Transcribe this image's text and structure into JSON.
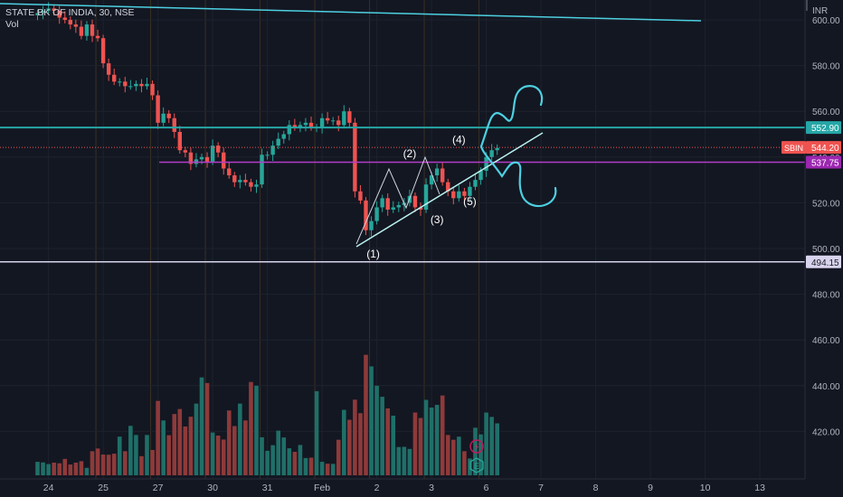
{
  "header": {
    "symbol_line": "STATE BK OF INDIA, 30, NSE",
    "volume_label": "Vol"
  },
  "currency": "INR",
  "colors": {
    "background": "#131722",
    "up": "#26a69a",
    "down": "#ef5350",
    "vol_up": "#1f6f68",
    "vol_down": "#8e3a3a",
    "teal_line": "#26a6a6",
    "magenta_line": "#b33cc8",
    "white_line": "#d9d4ee",
    "drawing": "#4dd0e1",
    "grid": "#1e222d"
  },
  "chart_data": {
    "type": "candlestick",
    "ylim": [
      403,
      617
    ],
    "y_ticks": [
      {
        "v": 420,
        "t": "420.00"
      },
      {
        "v": 440,
        "t": "440.00"
      },
      {
        "v": 460,
        "t": "460.00"
      },
      {
        "v": 480,
        "t": "480.00"
      },
      {
        "v": 500,
        "t": "500.00"
      },
      {
        "v": 520,
        "t": "520.00"
      },
      {
        "v": 540,
        "t": "540.00"
      },
      {
        "v": 560,
        "t": "560.00"
      },
      {
        "v": 580,
        "t": "580.00"
      },
      {
        "v": 600,
        "t": "600.00"
      }
    ],
    "x_ticks": [
      {
        "bar": 2,
        "t": "24"
      },
      {
        "bar": 12,
        "t": "25"
      },
      {
        "bar": 22,
        "t": "27"
      },
      {
        "bar": 32,
        "t": "30"
      },
      {
        "bar": 42,
        "t": "31"
      },
      {
        "bar": 52,
        "t": "Feb"
      },
      {
        "bar": 62,
        "t": "2"
      },
      {
        "bar": 72,
        "t": "3"
      },
      {
        "bar": 82,
        "t": "6"
      },
      {
        "bar": 92,
        "t": "7"
      },
      {
        "bar": 102,
        "t": "8"
      },
      {
        "bar": 112,
        "t": "9"
      },
      {
        "bar": 122,
        "t": "10"
      },
      {
        "bar": 132,
        "t": "13"
      }
    ],
    "close": [
      603,
      604,
      605,
      604,
      601,
      600,
      598,
      597,
      593,
      598,
      593,
      592,
      581,
      576,
      573,
      573,
      571,
      571,
      572,
      571,
      572,
      567,
      555,
      559,
      557,
      551,
      543,
      542,
      537,
      539,
      540,
      538,
      545,
      542,
      535,
      532,
      529,
      530,
      529,
      527,
      528,
      541,
      541,
      545,
      548,
      550,
      554,
      553,
      554,
      555,
      553,
      553,
      557,
      556,
      556,
      554,
      560,
      555,
      525,
      521,
      508,
      512,
      518,
      522,
      517,
      518,
      519,
      520,
      523,
      518,
      517,
      528,
      532,
      535,
      529,
      525,
      522,
      525,
      523,
      527,
      530,
      534,
      540,
      543,
      544
    ],
    "volume": [
      6.5,
      6.2,
      5.4,
      6.1,
      5.8,
      7.9,
      5.2,
      6.1,
      6.8,
      3.6,
      11.6,
      12.9,
      10.0,
      9.9,
      10.4,
      18.6,
      11.6,
      23.8,
      19.4,
      9.2,
      19.4,
      12.2,
      35.8,
      26.4,
      19.3,
      29.5,
      31.9,
      23.5,
      28.2,
      34.5,
      47.1,
      44.4,
      20.6,
      19.1,
      17.2,
      31.2,
      23.7,
      34.5,
      26.4,
      44.9,
      43.1,
      18.3,
      11.8,
      14.5,
      21.5,
      18.2,
      13.0,
      11.3,
      14.6,
      8.3,
      8.5,
      40.5,
      6.5,
      5.6,
      5.5,
      17.1,
      31.5,
      26.7,
      36.4,
      29.9,
      58.0,
      52.4,
      43.1,
      37.8,
      32.2,
      28.7,
      13.6,
      13.7,
      12.7,
      30.2,
      27.6,
      36.3,
      32.6,
      33.9,
      38.4,
      19.4,
      17.1,
      18.6,
      11.6,
      8.1,
      22.9,
      19.7,
      30.2,
      28.1,
      25.0
    ],
    "series": [
      {
        "name": "SBIN",
        "last": 544.2,
        "label": "544.20"
      }
    ],
    "levels": [
      {
        "value": 552.9,
        "label": "552.90",
        "color_key": "teal_line"
      },
      {
        "value": 537.75,
        "label": "537.75",
        "color_key": "magenta_line"
      },
      {
        "value": 494.15,
        "label": "494.15",
        "color_key": "white_line"
      }
    ],
    "wave_labels": [
      {
        "t": "(1)",
        "bar": 62,
        "v": 496
      },
      {
        "t": "(2)",
        "bar": 68,
        "v": 540
      },
      {
        "t": "(3)",
        "bar": 73,
        "v": 511
      },
      {
        "t": "(4)",
        "bar": 77,
        "v": 546
      },
      {
        "t": "(5)",
        "bar": 79,
        "v": 519
      }
    ]
  }
}
